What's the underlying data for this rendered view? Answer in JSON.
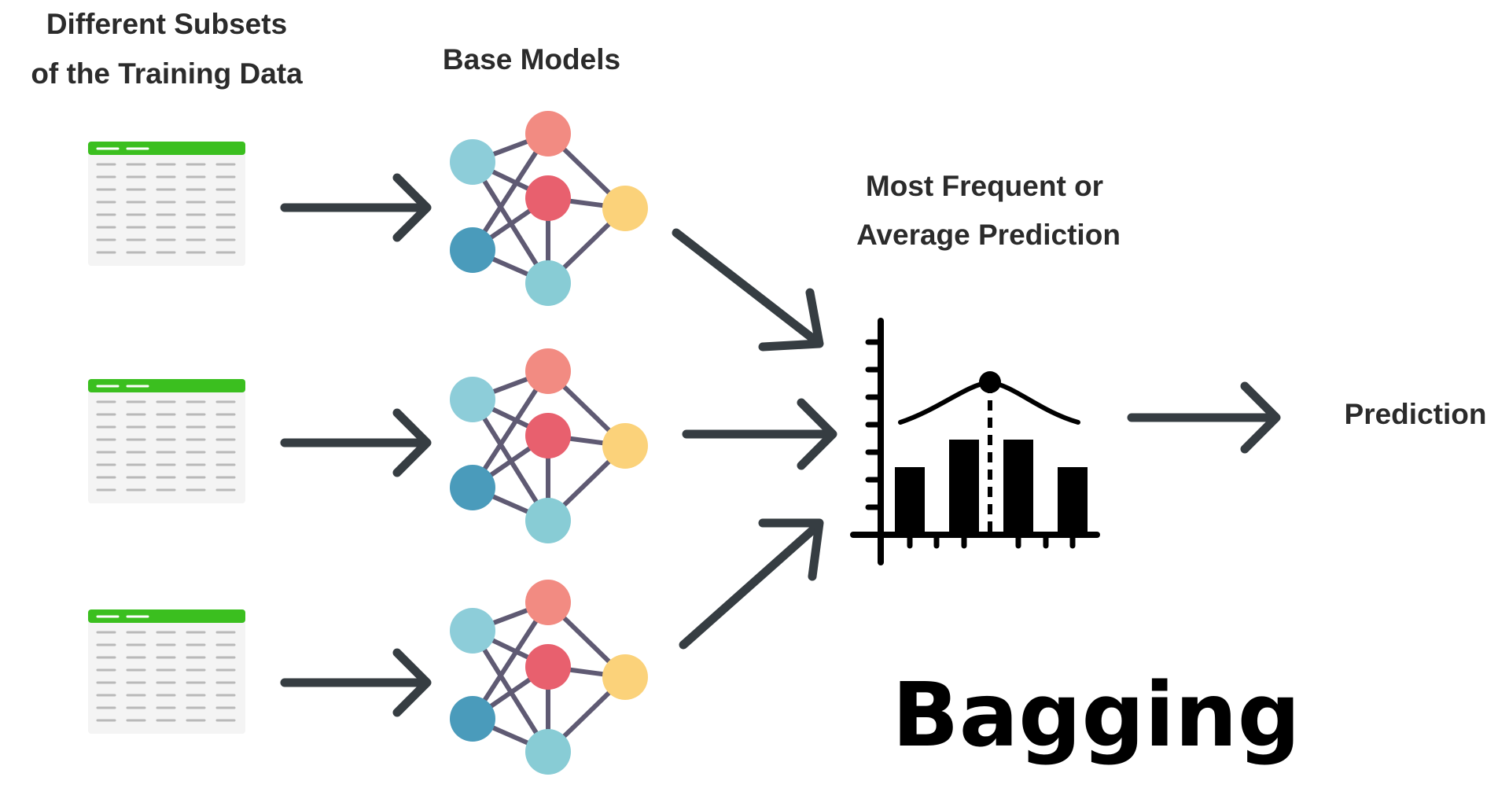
{
  "labels": {
    "subsets_line1": "Different Subsets",
    "subsets_line2": "of the Training Data",
    "base_models": "Base Models",
    "aggregate_line1": "Most Frequent or",
    "aggregate_line2": "Average Prediction",
    "prediction": "Prediction",
    "title": "Bagging"
  },
  "colors": {
    "table_header": "#3bbf1f",
    "arrow": "#363d42",
    "node_salmon": "#f28b82",
    "node_red": "#e8606e",
    "node_yellow": "#fbd27a",
    "node_light_blue": "#8dcdd9",
    "node_dark_blue": "#4a9bbb",
    "node_teal": "#88ccd5",
    "chart": "#000000"
  },
  "icons": {
    "data_table": "data-table-icon",
    "base_model": "neural-network-icon",
    "aggregation": "histogram-chart-icon"
  }
}
